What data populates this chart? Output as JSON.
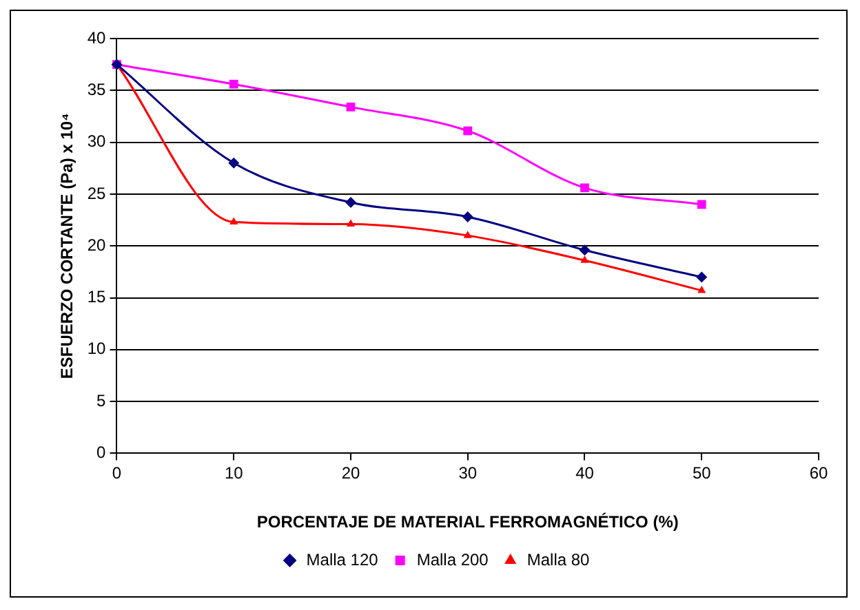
{
  "chart_data": {
    "type": "line",
    "xlabel": "PORCENTAJE DE MATERIAL FERROMAGNÉTICO (%)",
    "ylabel": "ESFUERZO CORTANTE (Pa) x 10⁴",
    "x": [
      0,
      10,
      20,
      30,
      40,
      50
    ],
    "series": [
      {
        "name": "Malla 120",
        "color": "#000080",
        "marker": "diamond",
        "values": [
          37.5,
          28,
          24.2,
          22.8,
          19.6,
          17.0
        ]
      },
      {
        "name": "Malla 200",
        "color": "#ff00ff",
        "marker": "square",
        "values": [
          37.5,
          35.6,
          33.4,
          31.1,
          25.6,
          24.0
        ]
      },
      {
        "name": "Malla 80",
        "color": "#ff0000",
        "marker": "triangle",
        "values": [
          37.5,
          22.3,
          22.1,
          21.0,
          18.6,
          15.7
        ]
      }
    ],
    "xlim": [
      0,
      60
    ],
    "xticks": [
      0,
      10,
      20,
      30,
      40,
      50,
      60
    ],
    "ylim": [
      0,
      40
    ],
    "yticks": [
      0,
      5,
      10,
      15,
      20,
      25,
      30,
      35,
      40
    ],
    "grid": "y",
    "legend": "bottom",
    "line_style": "solid"
  }
}
